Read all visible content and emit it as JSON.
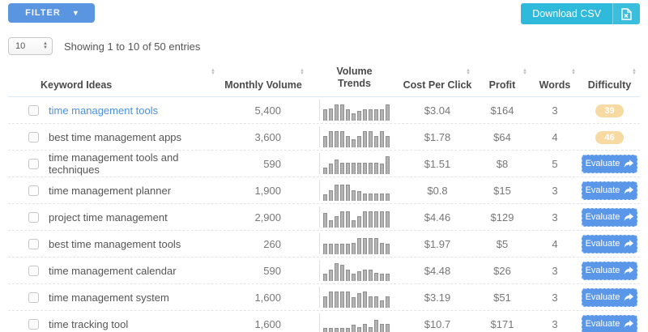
{
  "toolbar": {
    "filter_label": "FILTER",
    "download_csv_label": "Download CSV"
  },
  "controls": {
    "page_size_value": "10",
    "showing_text": "Showing 1 to 10 of 50 entries"
  },
  "icons": {
    "caret_down": "▾",
    "sort_up": "▲",
    "sort_down": "▼",
    "spinner_up": "▲",
    "spinner_down": "▼"
  },
  "colors": {
    "filter_button": "#5995e0",
    "download_button": "#2fb9da",
    "evaluate_button": "#5b97e9",
    "keyword_link": "#4a90e2",
    "difficulty_badge": "#f7d9a2",
    "trend_bar": "#b3b3b3"
  },
  "table": {
    "columns": [
      {
        "label": "Keyword Ideas",
        "sortable": true
      },
      {
        "label": "Monthly Volume",
        "sortable": true
      },
      {
        "label": "Volume Trends",
        "sortable": false
      },
      {
        "label": "Cost Per Click",
        "sortable": true
      },
      {
        "label": "Profit",
        "sortable": true
      },
      {
        "label": "Words",
        "sortable": true
      },
      {
        "label": "Difficulty",
        "sortable": true
      }
    ],
    "rows": [
      {
        "keyword": "time management tools",
        "link": true,
        "monthly_volume": "5,400",
        "trend": [
          55,
          58,
          78,
          75,
          55,
          35,
          45,
          55,
          55,
          55,
          52,
          78
        ],
        "cpc": "$3.04",
        "profit": "$164",
        "words": "3",
        "difficulty": "39",
        "action": null
      },
      {
        "keyword": "best time management apps",
        "link": false,
        "monthly_volume": "3,600",
        "trend": [
          55,
          75,
          78,
          75,
          55,
          40,
          55,
          75,
          78,
          55,
          75,
          55
        ],
        "cpc": "$1.78",
        "profit": "$64",
        "words": "4",
        "difficulty": "46",
        "action": null
      },
      {
        "keyword": "time management tools and techniques",
        "link": false,
        "monthly_volume": "590",
        "trend": [
          30,
          50,
          70,
          55,
          55,
          55,
          55,
          55,
          55,
          55,
          50,
          85
        ],
        "cpc": "$1.51",
        "profit": "$8",
        "words": "5",
        "difficulty": null,
        "action": "Evaluate"
      },
      {
        "keyword": "time management planner",
        "link": false,
        "monthly_volume": "1,900",
        "trend": [
          30,
          50,
          75,
          75,
          75,
          50,
          45,
          35,
          35,
          35,
          35,
          35
        ],
        "cpc": "$0.8",
        "profit": "$15",
        "words": "3",
        "difficulty": null,
        "action": "Evaluate"
      },
      {
        "keyword": "project time management",
        "link": false,
        "monthly_volume": "2,900",
        "trend": [
          70,
          35,
          55,
          75,
          75,
          35,
          55,
          75,
          75,
          75,
          75,
          75
        ],
        "cpc": "$4.46",
        "profit": "$129",
        "words": "3",
        "difficulty": null,
        "action": "Evaluate"
      },
      {
        "keyword": "best time management tools",
        "link": false,
        "monthly_volume": "260",
        "trend": [
          50,
          50,
          50,
          50,
          50,
          55,
          75,
          75,
          75,
          75,
          55,
          50
        ],
        "cpc": "$1.97",
        "profit": "$5",
        "words": "4",
        "difficulty": null,
        "action": "Evaluate"
      },
      {
        "keyword": "time management calendar",
        "link": false,
        "monthly_volume": "590",
        "trend": [
          35,
          55,
          85,
          75,
          55,
          35,
          45,
          55,
          55,
          40,
          35,
          35
        ],
        "cpc": "$4.48",
        "profit": "$26",
        "words": "3",
        "difficulty": null,
        "action": "Evaluate"
      },
      {
        "keyword": "time management system",
        "link": false,
        "monthly_volume": "1,600",
        "trend": [
          55,
          75,
          75,
          75,
          75,
          50,
          70,
          75,
          55,
          55,
          35,
          55
        ],
        "cpc": "$3.19",
        "profit": "$51",
        "words": "3",
        "difficulty": null,
        "action": "Evaluate"
      },
      {
        "keyword": "time tracking tool",
        "link": false,
        "monthly_volume": "1,600",
        "trend": [
          30,
          30,
          30,
          30,
          30,
          45,
          35,
          50,
          35,
          70,
          50,
          50
        ],
        "cpc": "$10.7",
        "profit": "$171",
        "words": "3",
        "difficulty": null,
        "action": "Evaluate"
      }
    ]
  }
}
